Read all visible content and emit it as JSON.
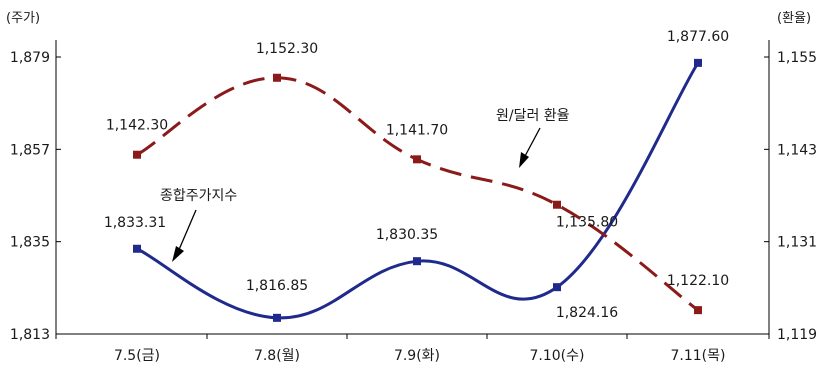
{
  "chart_data": {
    "type": "line",
    "categories": [
      "7.5(금)",
      "7.8(월)",
      "7.9(화)",
      "7.10(수)",
      "7.11(목)"
    ],
    "y_left": {
      "unit_label": "(주가)",
      "min": 1813,
      "max": 1879,
      "ticks": [
        "1,813",
        "1,835",
        "1,857",
        "1,879"
      ]
    },
    "y_right": {
      "unit_label": "(환율)",
      "min": 1119,
      "max": 1155,
      "ticks": [
        "1,119",
        "1,131",
        "1,143",
        "1,155"
      ]
    },
    "series": [
      {
        "name": "종합주가지수",
        "axis": "left",
        "style": "solid",
        "color": "#1f2a8c",
        "values": [
          1833.31,
          1816.85,
          1830.35,
          1824.16,
          1877.6
        ],
        "labels": [
          "1,833.31",
          "1,816.85",
          "1,830.35",
          "1,824.16",
          "1,877.60"
        ]
      },
      {
        "name": "원/달러 환율",
        "axis": "right",
        "style": "dashed",
        "color": "#8b1a1a",
        "values": [
          1142.3,
          1152.3,
          1141.7,
          1135.8,
          1122.1
        ],
        "labels": [
          "1,142.30",
          "1,152.30",
          "1,141.70",
          "1,135.80",
          "1,122.10"
        ]
      }
    ],
    "legend": "inline-annotations",
    "grid": false
  }
}
